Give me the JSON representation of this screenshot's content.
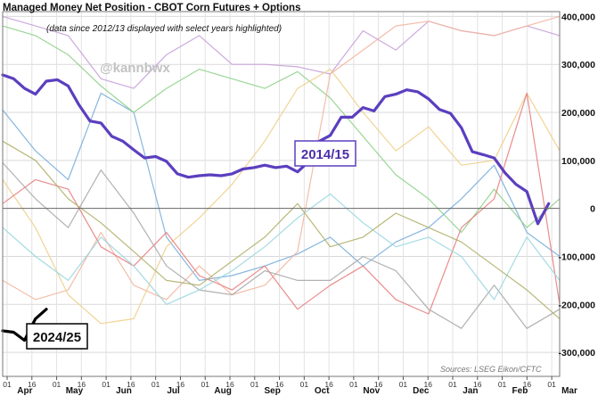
{
  "chart_data": {
    "type": "line",
    "title": "Managed Money Net Position - CBOT Corn Futures + Options",
    "subtitle": "(data since 2012/13 displayed with select years highlighted)",
    "watermark": "@kannbwx",
    "source": "Sources: LSEG Eikon/CFTC",
    "ylim": [
      -350000,
      410000
    ],
    "y_ticks": [
      400000,
      300000,
      200000,
      100000,
      0,
      -100000,
      -200000,
      -300000
    ],
    "y_tick_labels": [
      "400,000",
      "300,000",
      "200,000",
      "100,000",
      "0",
      "-100,000",
      "-200,000",
      "-300,000"
    ],
    "day_ticks": [
      "01",
      "16",
      "01",
      "16",
      "01",
      "16",
      "01",
      "16",
      "01",
      "16",
      "01",
      "16",
      "01",
      "16",
      "01",
      "16",
      "01",
      "16",
      "01",
      "16",
      "01",
      "16",
      "01"
    ],
    "months": [
      "Apr",
      "May",
      "Jun",
      "Jul",
      "Aug",
      "Sep",
      "Oct",
      "Nov",
      "Dec",
      "Jan",
      "Feb",
      "Mar"
    ],
    "x_unit": "weeks since start of April",
    "grid": true,
    "series": [
      {
        "name": "2014/15",
        "highlight": true,
        "color": "#5b3fbf",
        "label_color": "#4a2fa8",
        "x": [
          0,
          1,
          2,
          3,
          4,
          5,
          6,
          7,
          8,
          9,
          10,
          11,
          12,
          13,
          14,
          15,
          16,
          17,
          18,
          19,
          20,
          21,
          22,
          23,
          24,
          25,
          26,
          27,
          28,
          29,
          30,
          31,
          32,
          33,
          34,
          35,
          36,
          37,
          38,
          39,
          40,
          41,
          42,
          43,
          44,
          45,
          46,
          47,
          48,
          49,
          50
        ],
        "values": [
          278000,
          270000,
          250000,
          238000,
          265000,
          268000,
          255000,
          215000,
          182000,
          178000,
          150000,
          140000,
          122000,
          105000,
          108000,
          98000,
          72000,
          65000,
          68000,
          70000,
          68000,
          72000,
          82000,
          85000,
          90000,
          85000,
          88000,
          76000,
          97000,
          140000,
          152000,
          190000,
          190000,
          210000,
          203000,
          233000,
          238000,
          247000,
          243000,
          228000,
          206000,
          198000,
          168000,
          118000,
          112000,
          105000,
          74000,
          50000,
          35000,
          -32000,
          10000
        ]
      },
      {
        "name": "2024/25",
        "highlight": true,
        "color": "#000000",
        "label_color": "#111111",
        "x": [
          0,
          1,
          2,
          3,
          4
        ],
        "values": [
          -255000,
          -258000,
          -275000,
          -230000,
          -210000
        ]
      },
      {
        "color": "#7aaedc",
        "x": [
          0,
          3,
          6,
          9,
          12,
          15,
          18,
          21,
          24,
          27,
          30,
          33,
          36,
          39,
          42,
          45,
          48,
          51
        ],
        "values": [
          205000,
          120000,
          60000,
          240000,
          200000,
          -60000,
          -150000,
          -140000,
          -120000,
          -95000,
          -60000,
          -120000,
          -70000,
          -40000,
          20000,
          90000,
          -50000,
          -100000
        ]
      },
      {
        "color": "#8fd18a",
        "x": [
          0,
          3,
          6,
          9,
          12,
          15,
          18,
          21,
          24,
          27,
          30,
          33,
          36,
          39,
          42,
          45,
          48,
          51
        ],
        "values": [
          380000,
          360000,
          320000,
          255000,
          200000,
          250000,
          290000,
          270000,
          250000,
          285000,
          230000,
          150000,
          70000,
          20000,
          -50000,
          40000,
          -40000,
          20000
        ]
      },
      {
        "color": "#c7a0d8",
        "x": [
          0,
          3,
          6,
          9,
          12,
          15,
          18,
          21,
          24,
          27,
          30,
          33,
          36,
          39,
          42,
          45,
          48,
          51
        ],
        "values": [
          400000,
          380000,
          360000,
          270000,
          250000,
          320000,
          360000,
          300000,
          300000,
          295000,
          280000,
          370000,
          330000,
          390000,
          370000,
          360000,
          380000,
          360000
        ]
      },
      {
        "color": "#f2b6a0",
        "x": [
          0,
          3,
          6,
          9,
          12,
          15,
          18,
          21,
          24,
          27,
          30,
          33,
          36,
          39,
          42,
          45,
          48,
          51
        ],
        "values": [
          -150000,
          -190000,
          -170000,
          -50000,
          -160000,
          -190000,
          -120000,
          -180000,
          -160000,
          -90000,
          280000,
          330000,
          380000,
          390000,
          370000,
          360000,
          380000,
          400000
        ]
      },
      {
        "color": "#f0cf8a",
        "x": [
          0,
          3,
          6,
          9,
          12,
          15,
          18,
          21,
          24,
          27,
          30,
          33,
          36,
          39,
          42,
          45,
          48,
          51
        ],
        "values": [
          60000,
          -40000,
          -180000,
          -240000,
          -230000,
          -80000,
          -20000,
          50000,
          140000,
          250000,
          290000,
          200000,
          120000,
          170000,
          90000,
          100000,
          240000,
          120000
        ]
      },
      {
        "color": "#e88080",
        "x": [
          0,
          3,
          6,
          9,
          12,
          15,
          18,
          21,
          24,
          27,
          30,
          33,
          36,
          39,
          42,
          45,
          48,
          51
        ],
        "values": [
          10000,
          60000,
          40000,
          -80000,
          -120000,
          -50000,
          -140000,
          -170000,
          -120000,
          -210000,
          -160000,
          -120000,
          -190000,
          -220000,
          -40000,
          20000,
          240000,
          -200000
        ]
      },
      {
        "color": "#a9a9a9",
        "x": [
          0,
          3,
          6,
          9,
          12,
          15,
          18,
          21,
          24,
          27,
          30,
          33,
          36,
          39,
          42,
          45,
          48,
          51
        ],
        "values": [
          95000,
          20000,
          -40000,
          80000,
          -10000,
          -120000,
          -170000,
          -180000,
          -130000,
          -150000,
          -150000,
          -100000,
          -130000,
          -210000,
          -250000,
          -160000,
          -250000,
          -210000
        ]
      },
      {
        "color": "#9ad7e0",
        "x": [
          0,
          3,
          6,
          9,
          12,
          15,
          18,
          21,
          24,
          27,
          30,
          33,
          36,
          39,
          42,
          45,
          48,
          51
        ],
        "values": [
          -40000,
          -100000,
          -150000,
          -60000,
          -120000,
          -200000,
          -170000,
          -130000,
          -80000,
          -20000,
          30000,
          -30000,
          -80000,
          -60000,
          -100000,
          -190000,
          -60000,
          -150000
        ]
      },
      {
        "color": "#b0b06a",
        "x": [
          0,
          3,
          6,
          9,
          12,
          15,
          18,
          21,
          24,
          27,
          30,
          33,
          36,
          39,
          42,
          45,
          48,
          51
        ],
        "values": [
          140000,
          100000,
          20000,
          -30000,
          -90000,
          -150000,
          -160000,
          -110000,
          -60000,
          10000,
          -80000,
          -60000,
          -10000,
          -40000,
          -70000,
          -120000,
          -170000,
          -230000
        ]
      }
    ]
  }
}
